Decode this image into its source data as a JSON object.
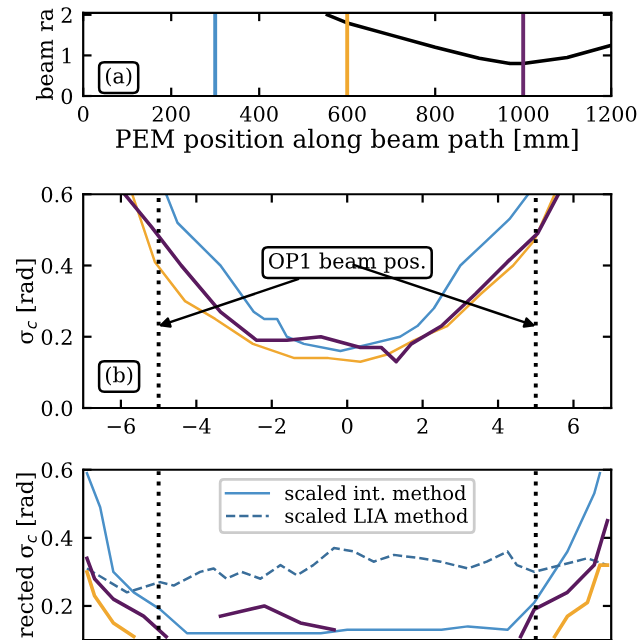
{
  "chart_data": [
    {
      "type": "line",
      "xlabel": "PEM position along beam path [mm]",
      "ylabel": "beam ra",
      "xlim": [
        0,
        1200
      ],
      "xticks": [
        0,
        200,
        400,
        600,
        800,
        1000,
        1200
      ],
      "ylim": [
        0,
        2.05
      ],
      "yticks": [
        0,
        1,
        2
      ],
      "series": [
        {
          "color": "#000000",
          "x": [
            555,
            600,
            700,
            800,
            900,
            970,
            1000,
            1100,
            1200
          ],
          "values": [
            2.0,
            1.8,
            1.5,
            1.2,
            0.93,
            0.8,
            0.8,
            0.95,
            1.25
          ]
        }
      ],
      "ref_lines": [
        {
          "axis": "x",
          "value": 300,
          "color": "#4a90c8"
        },
        {
          "axis": "x",
          "value": 600,
          "color": "#f0a830"
        },
        {
          "axis": "x",
          "value": 1000,
          "color": "#6a2a6e"
        }
      ],
      "annotations": [
        "(a)"
      ]
    },
    {
      "type": "line",
      "ylabel": "σ$_{c}$ [rad]",
      "xlim": [
        -7,
        7
      ],
      "xticks": [
        {
          "value": -6,
          "label": "−6"
        },
        {
          "value": -4,
          "label": "−4"
        },
        {
          "value": -2,
          "label": "−2"
        },
        0,
        2,
        4,
        6
      ],
      "ylim": [
        0,
        0.6
      ],
      "yticks": [
        {
          "value": 0,
          "label": "0.0"
        },
        0.2,
        0.4,
        0.6
      ],
      "series": [
        {
          "color": "#4a90c8",
          "x": [
            -4.8,
            -4.5,
            -3.36,
            -2.48,
            -2.2,
            -1.86,
            -1.6,
            -1.15,
            -0.18,
            0.62,
            1.4,
            1.86,
            2.3,
            3.0,
            3.7,
            4.3,
            4.8
          ],
          "values": [
            0.6,
            0.52,
            0.4,
            0.27,
            0.25,
            0.25,
            0.2,
            0.18,
            0.16,
            0.18,
            0.2,
            0.23,
            0.28,
            0.4,
            0.47,
            0.53,
            0.6
          ]
        },
        {
          "color": "#f0a830",
          "x": [
            -5.7,
            -5.1,
            -4.3,
            -3.5,
            -2.5,
            -1.4,
            -0.5,
            0.35,
            1.06,
            1.77,
            2.65,
            3.54,
            4.4,
            4.96,
            5.5
          ],
          "values": [
            0.6,
            0.41,
            0.3,
            0.25,
            0.18,
            0.14,
            0.14,
            0.13,
            0.15,
            0.19,
            0.23,
            0.32,
            0.4,
            0.47,
            0.6
          ]
        },
        {
          "color": "#5a1a5e",
          "x": [
            -5.9,
            -5.2,
            -4.4,
            -3.36,
            -2.4,
            -1.6,
            -0.7,
            0.35,
            0.9,
            1.3,
            1.7,
            2.5,
            3.4,
            4.25,
            5.05,
            5.6
          ],
          "values": [
            0.6,
            0.51,
            0.4,
            0.27,
            0.19,
            0.19,
            0.2,
            0.17,
            0.17,
            0.13,
            0.18,
            0.23,
            0.32,
            0.41,
            0.49,
            0.6
          ]
        }
      ],
      "ref_lines": [
        {
          "axis": "x",
          "value": -5,
          "color": "#000000",
          "line_style": "dotted"
        },
        {
          "axis": "x",
          "value": 5,
          "color": "#000000",
          "line_style": "dotted"
        }
      ],
      "annotations": [
        {
          "text": "OP1 beam pos.",
          "x": -5,
          "y": 0.23
        },
        "(b)"
      ]
    },
    {
      "type": "line",
      "ylabel": "rected σ$_{c}$ [rad]",
      "xlim": [
        -7,
        7
      ],
      "ylim": [
        0.1,
        0.6
      ],
      "yticks": [
        0.2,
        0.4,
        0.6
      ],
      "tick_labels": "y",
      "legend": "top",
      "series": [
        {
          "name": "scaled int. method",
          "color": "#4a90c8",
          "x": [
            -6.9,
            -6.55,
            -6.2,
            -5.66,
            -4.96,
            -4.25,
            -0.7,
            0,
            1,
            2.5,
            3.2,
            4.25,
            4.96,
            5.84,
            6.55,
            6.7
          ],
          "values": [
            0.59,
            0.49,
            0.3,
            0.24,
            0.19,
            0.12,
            0.12,
            0.13,
            0.13,
            0.13,
            0.14,
            0.13,
            0.21,
            0.36,
            0.53,
            0.59
          ]
        },
        {
          "name": "scaled LIA method",
          "color": "#3a6e9a",
          "line_style": "dashed",
          "x": [
            -6.9,
            -5.84,
            -4.96,
            -4.6,
            -3.9,
            -3.54,
            -3.2,
            -2.8,
            -2.3,
            -1.77,
            -1.33,
            -0.9,
            -0.35,
            0.18,
            0.7,
            1.24,
            1.95,
            2.48,
            3.2,
            3.7,
            4.25,
            4.5,
            4.96,
            5.66,
            6.37,
            6.9
          ],
          "values": [
            0.31,
            0.24,
            0.27,
            0.26,
            0.3,
            0.31,
            0.28,
            0.3,
            0.28,
            0.32,
            0.29,
            0.32,
            0.37,
            0.36,
            0.33,
            0.35,
            0.34,
            0.33,
            0.31,
            0.33,
            0.36,
            0.32,
            0.3,
            0.32,
            0.34,
            0.32
          ]
        },
        {
          "color": "#5a1a5e",
          "x": [
            -6.9,
            -6.7,
            -6.2,
            -5.4,
            -4.8,
            null,
            -3.36,
            -2.2,
            -1.24,
            -0.35,
            null,
            4.6,
            4.96,
            5.84,
            6.55,
            6.9
          ],
          "values": [
            0.34,
            0.28,
            0.22,
            0.17,
            0.11,
            null,
            0.17,
            0.2,
            0.15,
            0.13,
            null,
            0.11,
            0.19,
            0.24,
            0.32,
            0.45
          ]
        },
        {
          "color": "#f0a830",
          "x": [
            -6.9,
            -6.7,
            -6.2,
            -5.66,
            null,
            5.5,
            5.84,
            6.37,
            6.7,
            6.9
          ],
          "values": [
            0.3,
            0.23,
            0.15,
            0.11,
            null,
            0.11,
            0.17,
            0.21,
            0.32,
            0.32
          ]
        }
      ],
      "ref_lines": [
        {
          "axis": "x",
          "value": -5,
          "color": "#000000",
          "line_style": "dotted"
        },
        {
          "axis": "x",
          "value": 5,
          "color": "#000000",
          "line_style": "dotted"
        }
      ]
    }
  ]
}
